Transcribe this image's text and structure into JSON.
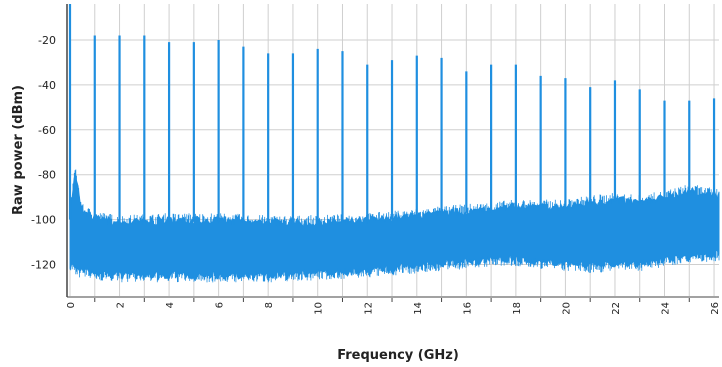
{
  "colors": {
    "series": "#1f8fe0",
    "grid": "#cfcfcf",
    "axis": "#444444",
    "background": "#ffffff",
    "text": "#222222"
  },
  "chart_data": {
    "type": "line",
    "title": "",
    "xlabel": "Frequency (GHz)",
    "ylabel": "Raw power (dBm)",
    "xlim": [
      0,
      26.2
    ],
    "ylim": [
      -134,
      -4
    ],
    "x_ticks": [
      0,
      1,
      2,
      3,
      4,
      5,
      6,
      7,
      8,
      9,
      10,
      11,
      12,
      13,
      14,
      15,
      16,
      17,
      18,
      19,
      20,
      21,
      22,
      23,
      24,
      25,
      26
    ],
    "x_tick_labels": [
      "0",
      "1",
      "2",
      "3",
      "4",
      "5",
      "6",
      "7",
      "8",
      "9",
      "10",
      "11",
      "12",
      "13",
      "14",
      "15",
      "16",
      "17",
      "18",
      "19",
      "20",
      "21",
      "22",
      "23",
      "24",
      "25",
      "26"
    ],
    "y_ticks": [
      -20,
      -40,
      -60,
      -80,
      -100,
      -120
    ],
    "y_tick_labels": [
      "-20",
      "-40",
      "-60",
      "-80",
      "-100",
      "-120"
    ],
    "grid": true,
    "series": [
      {
        "name": "",
        "style": "spectrum",
        "noise_floor": {
          "x": [
            0,
            0.1,
            0.2,
            0.3,
            0.4,
            0.5,
            1,
            2,
            4,
            6,
            8,
            10,
            12,
            13,
            14,
            15,
            16,
            17,
            18,
            19,
            20,
            21,
            22,
            23,
            24,
            25,
            26,
            26.2
          ],
          "upper": [
            -100,
            -88,
            -80,
            -84,
            -93,
            -97,
            -100,
            -102,
            -101,
            -101,
            -102,
            -102,
            -101,
            -100,
            -99,
            -98,
            -97,
            -96,
            -95,
            -95,
            -95,
            -93,
            -92,
            -93,
            -91,
            -88,
            -90,
            -90
          ],
          "lower": [
            -120,
            -120,
            -120,
            -121,
            -122,
            -122,
            -123,
            -124,
            -124,
            -124,
            -124,
            -123,
            -122,
            -121,
            -120,
            -119,
            -118,
            -117,
            -117,
            -118,
            -119,
            -120,
            -119,
            -119,
            -117,
            -115,
            -115,
            -115
          ]
        },
        "spurs": [
          {
            "x": 0,
            "y": -4
          },
          {
            "x": 1,
            "y": -18
          },
          {
            "x": 2,
            "y": -18
          },
          {
            "x": 3,
            "y": -18
          },
          {
            "x": 4,
            "y": -21
          },
          {
            "x": 5,
            "y": -21
          },
          {
            "x": 6,
            "y": -20
          },
          {
            "x": 7,
            "y": -23
          },
          {
            "x": 8,
            "y": -26
          },
          {
            "x": 9,
            "y": -26
          },
          {
            "x": 10,
            "y": -24
          },
          {
            "x": 11,
            "y": -25
          },
          {
            "x": 12,
            "y": -31
          },
          {
            "x": 13,
            "y": -29
          },
          {
            "x": 14,
            "y": -27
          },
          {
            "x": 15,
            "y": -28
          },
          {
            "x": 16,
            "y": -34
          },
          {
            "x": 17,
            "y": -31
          },
          {
            "x": 18,
            "y": -31
          },
          {
            "x": 19,
            "y": -36
          },
          {
            "x": 20,
            "y": -37
          },
          {
            "x": 21,
            "y": -41
          },
          {
            "x": 22,
            "y": -38
          },
          {
            "x": 23,
            "y": -42
          },
          {
            "x": 24,
            "y": -47
          },
          {
            "x": 25,
            "y": -47
          },
          {
            "x": 26,
            "y": -46
          }
        ]
      }
    ]
  }
}
